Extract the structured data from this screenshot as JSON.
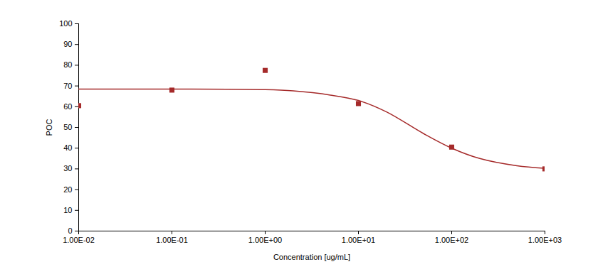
{
  "chart_data": {
    "type": "scatter",
    "x_label": "Concentration [ug/mL]",
    "y_label": "POC",
    "log": "x",
    "grid": false,
    "xlim": [
      0.01,
      1000
    ],
    "ylim": [
      0,
      100
    ],
    "xticks": [
      {
        "value": 0.01,
        "label": "1.00E-02"
      },
      {
        "value": 0.1,
        "label": "1.00E-01"
      },
      {
        "value": 1,
        "label": "1.00E+00"
      },
      {
        "value": 10,
        "label": "1.00E+01"
      },
      {
        "value": 100,
        "label": "1.00E+02"
      },
      {
        "value": 1000,
        "label": "1.00E+03"
      }
    ],
    "yticks": [
      0,
      10,
      20,
      30,
      40,
      50,
      60,
      70,
      80,
      90,
      100
    ],
    "series": [
      {
        "type": "scatter",
        "marker": "square",
        "color": "#a52a2a",
        "x": [
          0.01,
          0.1,
          1,
          10,
          100,
          1000
        ],
        "values": [
          60.5,
          68,
          77.5,
          61.5,
          40.5,
          30
        ]
      },
      {
        "type": "line",
        "line_style": "solid",
        "color": "#a52a2a",
        "x": [
          0.01,
          0.1,
          1,
          2,
          5,
          10,
          20,
          50,
          100,
          200,
          500,
          1000
        ],
        "values": [
          68.5,
          68.5,
          68.2,
          67.6,
          65.6,
          63,
          57.5,
          47,
          40,
          35,
          31.5,
          30.3
        ]
      }
    ]
  }
}
